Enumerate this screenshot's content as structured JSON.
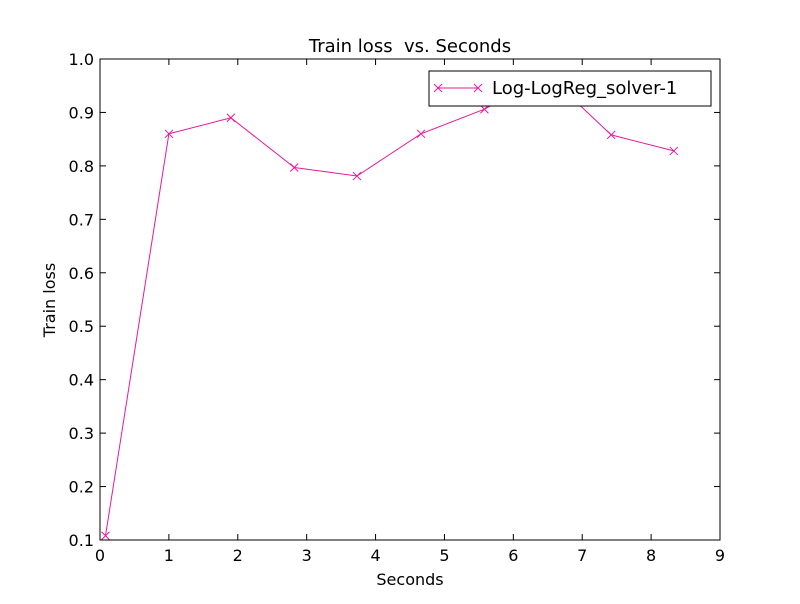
{
  "chart_data": {
    "type": "line",
    "title": "Train loss  vs. Seconds",
    "xlabel": "Seconds",
    "ylabel": "Train loss",
    "xlim": [
      0,
      9
    ],
    "ylim": [
      0.1,
      1.0
    ],
    "xticks": [
      "0",
      "1",
      "2",
      "3",
      "4",
      "5",
      "6",
      "7",
      "8",
      "9"
    ],
    "yticks": [
      "0.1",
      "0.2",
      "0.3",
      "0.4",
      "0.5",
      "0.6",
      "0.7",
      "0.8",
      "0.9",
      "1.0"
    ],
    "grid": false,
    "legend_position": "top-right",
    "series": [
      {
        "name": "Log-LogReg_solver-1",
        "color": "#e6199e",
        "marker": "x",
        "x": [
          0.08,
          1.0,
          1.9,
          2.82,
          3.73,
          4.66,
          5.58,
          6.5,
          7.42,
          8.33
        ],
        "y": [
          0.108,
          0.86,
          0.89,
          0.797,
          0.781,
          0.86,
          0.906,
          0.97,
          0.858,
          0.828
        ]
      }
    ]
  }
}
